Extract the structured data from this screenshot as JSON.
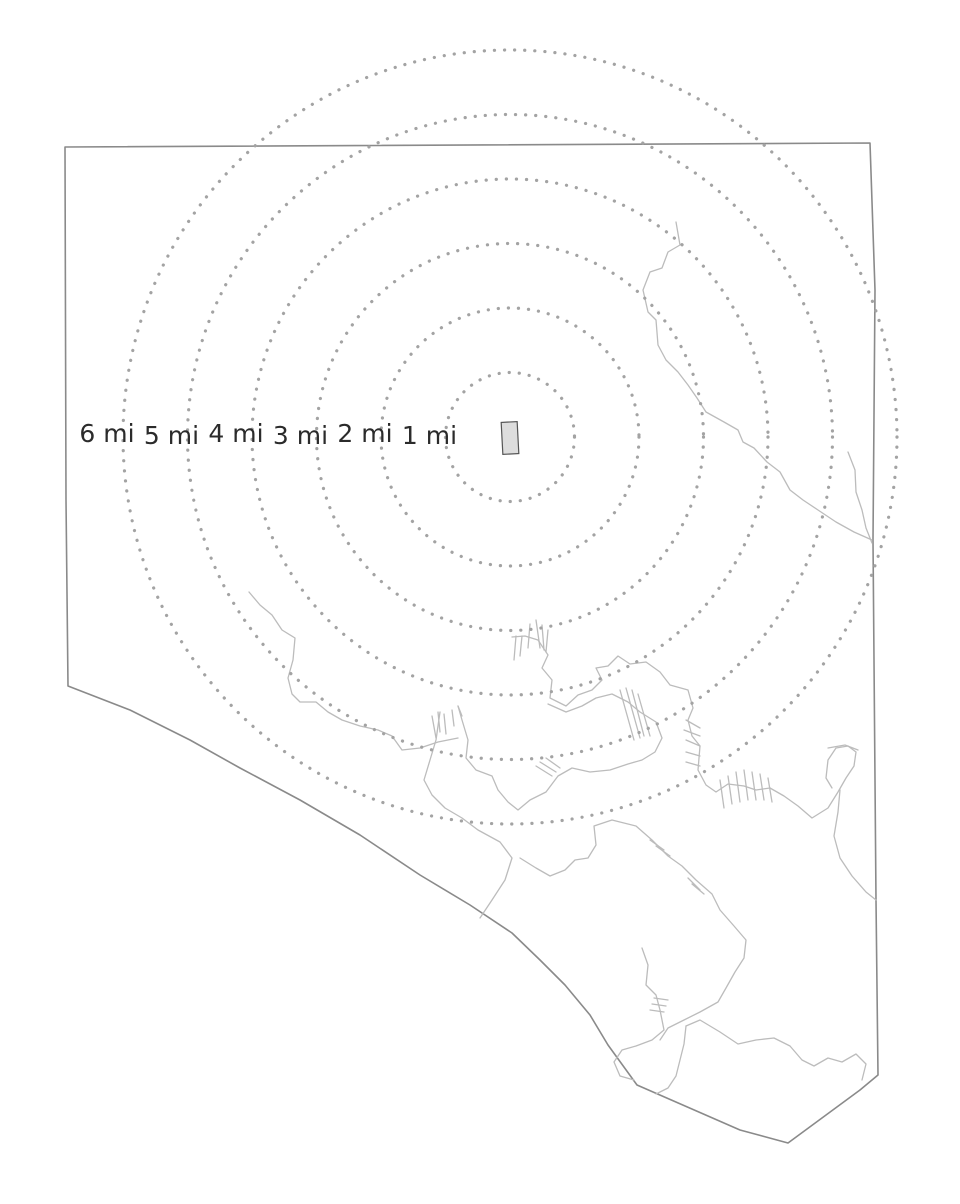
{
  "map": {
    "center_marker": "building-footprint",
    "ring_unit": "mi",
    "rings": [
      {
        "distance": 1,
        "label": "1 mi"
      },
      {
        "distance": 2,
        "label": "2 mi"
      },
      {
        "distance": 3,
        "label": "3 mi"
      },
      {
        "distance": 4,
        "label": "4 mi"
      },
      {
        "distance": 5,
        "label": "5 mi"
      },
      {
        "distance": 6,
        "label": "6 mi"
      }
    ],
    "colors": {
      "boundary": "#8a8a8a",
      "water": "#bcbcbc",
      "rings": "#a3a3a3",
      "labels": "#2b2b2b",
      "center_marker_fill": "#dddddd"
    }
  }
}
